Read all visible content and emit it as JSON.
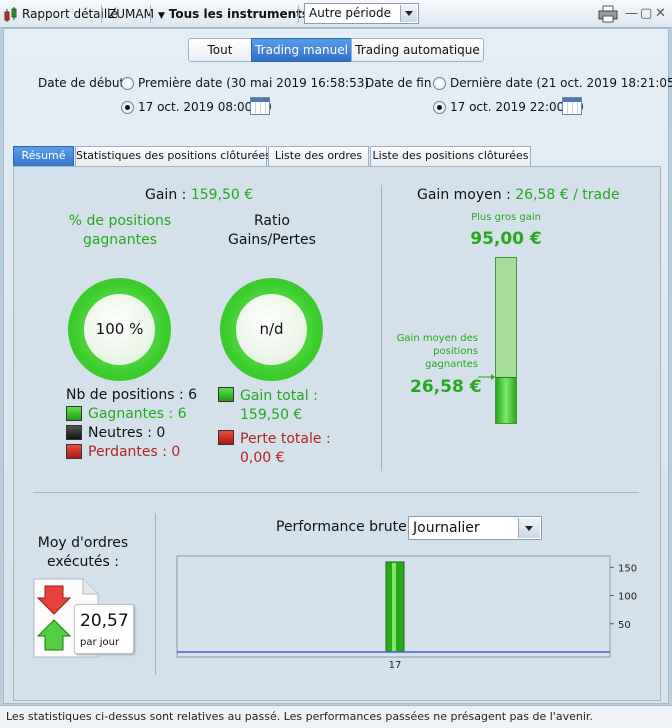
{
  "toolbar": {
    "report_label": "Rapport détaillé",
    "account_label": "ZUMAM",
    "instruments_label": "Tous les instruments",
    "period_value": "Autre période"
  },
  "filters": {
    "segments": [
      "Tout",
      "Trading manuel",
      "Trading automatique"
    ],
    "active_segment": "Trading manuel",
    "start_label": "Date de début :",
    "start_option_1": "Première date (30 mai 2019 16:58:53)",
    "start_option_2": "17 oct. 2019 08:00:00",
    "end_label": "Date de fin :",
    "end_option_1": "Dernière date (21 oct. 2019 18:21:05)",
    "end_option_2": "17 oct. 2019 22:00:00"
  },
  "tabs": [
    "Résumé",
    "Statistiques des positions clôturées",
    "Liste des ordres",
    "Liste des positions clôturées"
  ],
  "summary": {
    "gain_label": "Gain :",
    "gain_value": "159,50 €",
    "pct_title": "% de positions gagnantes",
    "pct_value": "100 %",
    "pct_fraction": 1.0,
    "ratio_title": "Ratio Gains/Pertes",
    "ratio_value": "n/d",
    "nb_positions": "Nb de positions : 6",
    "winners": "Gagnantes : 6",
    "neutral": "Neutres : 0",
    "losers": "Perdantes : 0",
    "gain_total_label": "Gain total :",
    "gain_total_value": "159,50 €",
    "loss_total_label": "Perte totale :",
    "loss_total_value": "0,00 €"
  },
  "avg_gain": {
    "label": "Gain moyen :",
    "value": "26,58 € / trade",
    "max_label": "Plus gros gain",
    "max_value": "95,00 €",
    "avg_win_label": "Gain moyen des positions gagnantes",
    "avg_win_value": "26,58 €",
    "max_numeric": 95.0,
    "avg_numeric": 26.58
  },
  "orders": {
    "title": "Moy d'ordres exécutés :",
    "value": "20,57",
    "unit": "par jour"
  },
  "performance": {
    "title": "Performance brute",
    "period_value": "Journalier"
  },
  "chart_data": {
    "type": "bar",
    "categories": [
      "17"
    ],
    "values": [
      159.5
    ],
    "yticks": [
      50,
      100,
      150
    ],
    "ylim": [
      0,
      170
    ],
    "color": "#2aa81c"
  },
  "footer": "Les statistiques ci-dessus sont relatives au passé. Les performances passées ne présagent pas de l'avenir.",
  "colors": {
    "green": "#26a81f",
    "red": "#b52222",
    "accent": "#3478cd"
  }
}
